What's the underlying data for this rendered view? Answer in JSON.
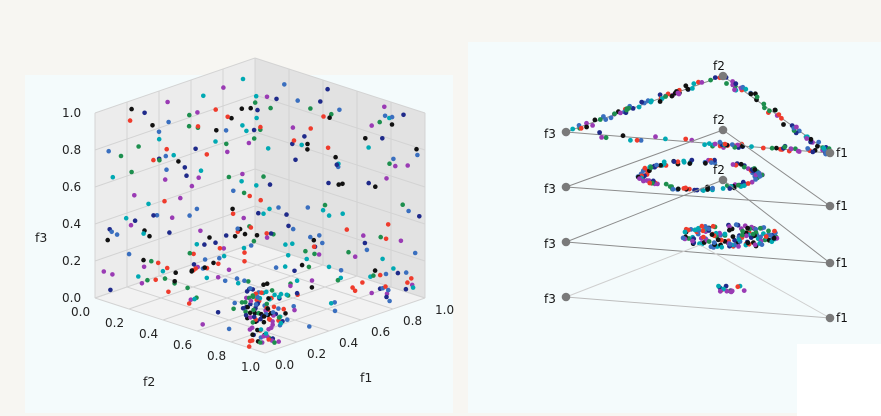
{
  "colors": {
    "points": [
      "#ef3b2c",
      "#1f2a8a",
      "#00a9b3",
      "#111111",
      "#9a3bb4",
      "#1d8f4e",
      "#3a6fbf"
    ],
    "grid": "#d3d3d3",
    "pane_left": "#ececec",
    "pane_right": "#e2e2e2",
    "pane_floor": "#f2f2f2",
    "triangle_edge": "#8c8c8c",
    "vertex_dot": "#7a7a7a"
  },
  "chart_data": [
    {
      "type": "scatter",
      "projection": "3d",
      "axes": {
        "f1": {
          "label": "f1",
          "range": [
            0,
            1
          ],
          "ticks": [
            "0.0",
            "0.2",
            "0.4",
            "0.6",
            "0.8",
            "1.0"
          ]
        },
        "f2": {
          "label": "f2",
          "range": [
            0,
            1
          ],
          "ticks": [
            "0.0",
            "0.2",
            "0.4",
            "0.6",
            "0.8",
            "1.0"
          ]
        },
        "f3": {
          "label": "f3",
          "range": [
            0,
            1
          ],
          "ticks": [
            "0.0",
            "0.2",
            "0.4",
            "0.6",
            "0.8",
            "1.0"
          ]
        }
      },
      "grid": true,
      "point_count": 420,
      "description_of_shape": "points scattered over the inner surface of the unit cube corner, denser near the origin"
    },
    {
      "type": "scatter",
      "projection": "stacked-simplex",
      "layers": [
        {
          "vertex_labels": {
            "top": "f2",
            "left": "f3",
            "right": "f1"
          },
          "spread": "edges of triangle"
        },
        {
          "vertex_labels": {
            "top": "f2",
            "left": "f3",
            "right": "f1"
          },
          "spread": "ring"
        },
        {
          "vertex_labels": {
            "top": "f2",
            "left": "f3",
            "right": "f1"
          },
          "spread": "blob"
        },
        {
          "vertex_labels": {
            "left": "f3",
            "right": "f1"
          },
          "spread": "small cluster"
        }
      ]
    }
  ]
}
